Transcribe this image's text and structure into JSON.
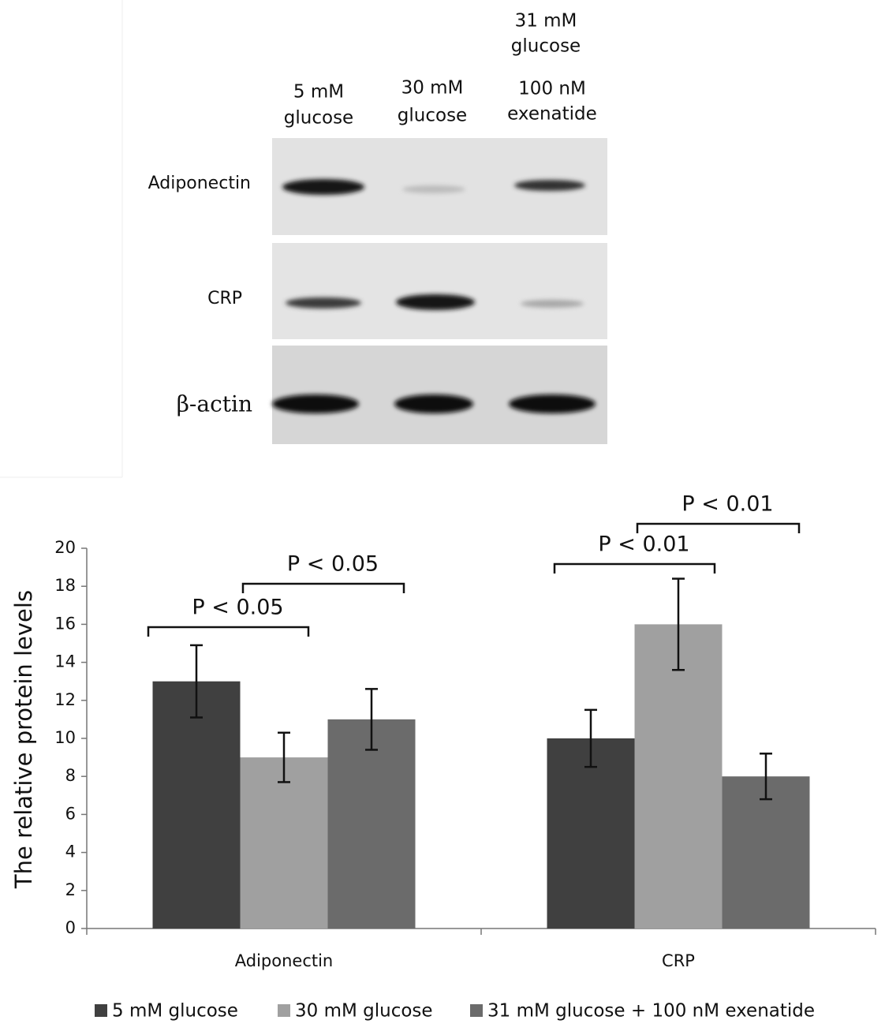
{
  "blot": {
    "rows": [
      "Adiponectin",
      "CRP",
      "β-actin"
    ],
    "lanes": [
      [
        "5 mM",
        "glucose"
      ],
      [
        "30 mM",
        "glucose"
      ],
      [
        "31 mM",
        "glucose",
        "100 nM",
        "exenatide"
      ]
    ]
  },
  "chart_data": {
    "type": "bar",
    "ylabel": "The relative protein levels",
    "categories": [
      "Adiponectin",
      "CRP"
    ],
    "series": [
      {
        "name": "5 mM glucose",
        "color": "#404040",
        "values": [
          13,
          10
        ],
        "errors": [
          1.9,
          1.5
        ]
      },
      {
        "name": "30 mM glucose",
        "color": "#a0a0a0",
        "values": [
          9,
          16
        ],
        "errors": [
          1.3,
          2.4
        ]
      },
      {
        "name": "31 mM glucose + 100 nM exenatide",
        "color": "#6b6b6b",
        "values": [
          11,
          8
        ],
        "errors": [
          1.6,
          1.2
        ]
      }
    ],
    "ylim": [
      0,
      20
    ],
    "yticks": [
      0,
      2,
      4,
      6,
      8,
      10,
      12,
      14,
      16,
      18,
      20
    ],
    "annotations": [
      "P < 0.05",
      "P < 0.05",
      "P < 0.01",
      "P < 0.01"
    ]
  }
}
